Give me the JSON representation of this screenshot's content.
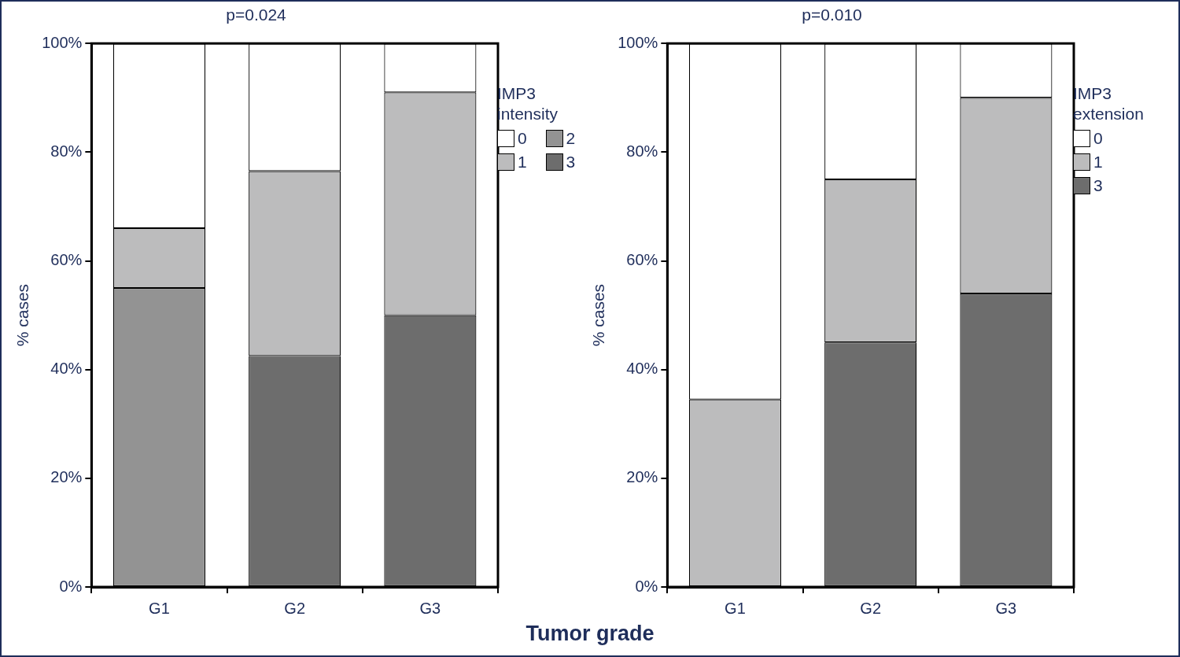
{
  "chart_data": [
    {
      "type": "bar",
      "stacked": true,
      "title": "p=0.024",
      "ylabel": "% cases",
      "legend_title": "IMP3 intensity",
      "categories": [
        "G1",
        "G2",
        "G3"
      ],
      "ylim": [
        0,
        100
      ],
      "yticks": [
        {
          "value": 0,
          "label": "0%"
        },
        {
          "value": 20,
          "label": "20%"
        },
        {
          "value": 40,
          "label": "40%"
        },
        {
          "value": 60,
          "label": "60%"
        },
        {
          "value": 80,
          "label": "80%"
        },
        {
          "value": 100,
          "label": "100%"
        }
      ],
      "series": [
        {
          "name": "0",
          "color": "#ffffff",
          "values": [
            34,
            23.5,
            9
          ]
        },
        {
          "name": "1",
          "color": "#bcbcbd",
          "values": [
            11,
            34,
            41
          ]
        },
        {
          "name": "2",
          "color": "#939393",
          "values": [
            55,
            0,
            0
          ]
        },
        {
          "name": "3",
          "color": "#6d6d6d",
          "values": [
            0,
            42.5,
            50
          ]
        }
      ]
    },
    {
      "type": "bar",
      "stacked": true,
      "title": "p=0.010",
      "ylabel": "% cases",
      "legend_title": "IMP3 extension",
      "categories": [
        "G1",
        "G2",
        "G3"
      ],
      "ylim": [
        0,
        100
      ],
      "yticks": [
        {
          "value": 0,
          "label": "0%"
        },
        {
          "value": 20,
          "label": "20%"
        },
        {
          "value": 40,
          "label": "40%"
        },
        {
          "value": 60,
          "label": "60%"
        },
        {
          "value": 80,
          "label": "80%"
        },
        {
          "value": 100,
          "label": "100%"
        }
      ],
      "series": [
        {
          "name": "0",
          "color": "#ffffff",
          "values": [
            65.5,
            25,
            10
          ]
        },
        {
          "name": "1",
          "color": "#bcbcbd",
          "values": [
            34.5,
            30,
            36
          ]
        },
        {
          "name": "3",
          "color": "#6d6d6d",
          "values": [
            0,
            45,
            54
          ]
        }
      ]
    }
  ],
  "xlabel": "Tumor grade"
}
